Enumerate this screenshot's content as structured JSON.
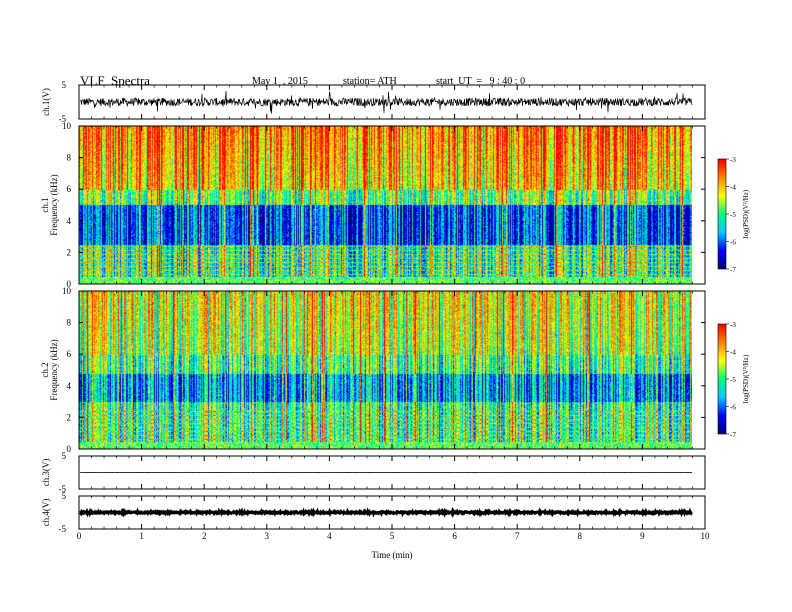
{
  "header": {
    "title": "VLF  Spectra",
    "date": "May 1  , 2015",
    "station": "station= ATH",
    "start_ut": "start  UT  =   9 : 40 : 0"
  },
  "chart_data": {
    "type": "heatmap",
    "x_axis": {
      "label": "Time  (min)",
      "range": [
        0,
        10
      ],
      "ticks": [
        "0",
        "1",
        "2",
        "3",
        "4",
        "5",
        "6",
        "7",
        "8",
        "9",
        "10"
      ]
    },
    "panels": [
      {
        "kind": "waveform",
        "ylabel": "ch.1(V)",
        "ylim": [
          -5,
          5
        ],
        "yticks": [
          "5",
          "-5"
        ],
        "amplitude": 1.2,
        "spiky": true
      },
      {
        "kind": "spectrogram",
        "ylabel_lines": [
          "ch.1",
          "Frequency  (kHz)"
        ],
        "ylim": [
          0,
          10
        ],
        "yticks": [
          "0",
          "2",
          "4",
          "6",
          "8",
          "10"
        ],
        "colorbar": {
          "label": "log(PSD)(V²/Hz)",
          "range": [
            -7,
            -3
          ],
          "ticks": [
            "-3",
            "-4",
            "-5",
            "-6",
            "-7"
          ]
        }
      },
      {
        "kind": "spectrogram",
        "ylabel_lines": [
          "ch.2",
          "Frequency  (kHz)"
        ],
        "ylim": [
          0,
          10
        ],
        "yticks": [
          "0",
          "2",
          "4",
          "6",
          "8",
          "10"
        ],
        "colorbar": {
          "label": "log(PSD)(V²/Hz)",
          "range": [
            -7,
            -3
          ],
          "ticks": [
            "-3",
            "-4",
            "-5",
            "-6",
            "-7"
          ]
        }
      },
      {
        "kind": "waveform",
        "ylabel": "ch.3(V)",
        "ylim": [
          -5,
          5
        ],
        "yticks": [
          "5",
          "-5"
        ],
        "amplitude": 0.05,
        "spiky": false
      },
      {
        "kind": "waveform",
        "ylabel": "ch.4(V)",
        "ylim": [
          -5,
          5
        ],
        "yticks": [
          "5",
          "-5"
        ],
        "amplitude": 0.25,
        "spiky": false
      }
    ],
    "data_end_min": 9.8,
    "colorscale": [
      "#000080",
      "#0000ff",
      "#00c8ff",
      "#00ff80",
      "#ffff00",
      "#ff8000",
      "#ff0000",
      "#ffffff"
    ]
  }
}
